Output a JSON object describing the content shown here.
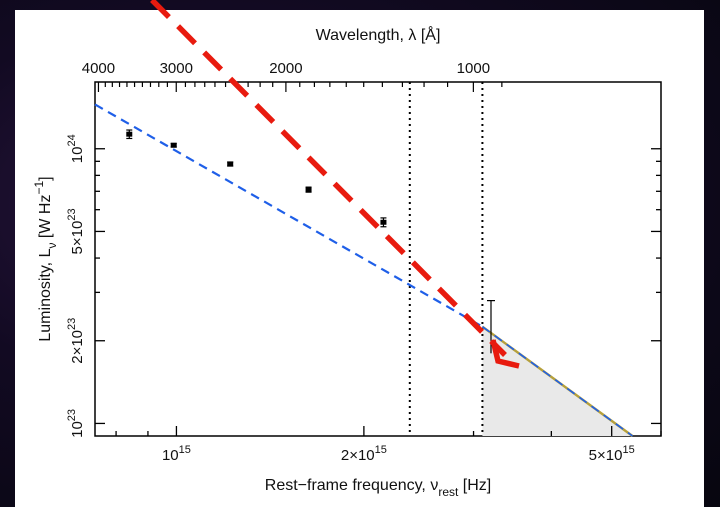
{
  "chart_data": {
    "type": "scatter",
    "title": "",
    "xlabel": {
      "text": "Rest−frame frequency, ν",
      "sub": "rest",
      "unit": " [Hz]"
    },
    "ylabel": {
      "text": "Luminosity, L",
      "sub": "ν",
      "unit": " [W Hz",
      "sup": "−1",
      "close": "]"
    },
    "top_xlabel": "Wavelength, λ [Å]",
    "x_scale": "log",
    "y_scale": "log",
    "xlim": [
      740000000000000.0,
      6000000000000000.0
    ],
    "ylim": [
      9e+22,
      1.75e+24
    ],
    "x_ticks": [
      {
        "value": 1000000000000000.0,
        "base": "10",
        "exp": "15"
      },
      {
        "value": 2000000000000000.0,
        "base": "2×10",
        "exp": "15"
      },
      {
        "value": 5000000000000000.0,
        "base": "5×10",
        "exp": "15"
      }
    ],
    "y_ticks": [
      {
        "value": 1e+23,
        "base": "10",
        "exp": "23"
      },
      {
        "value": 2e+23,
        "base": "2×10",
        "exp": "23"
      },
      {
        "value": 5e+23,
        "base": "5×10",
        "exp": "23"
      },
      {
        "value": 1e+24,
        "base": "10",
        "exp": "24"
      }
    ],
    "top_ticks": [
      {
        "value": 4000,
        "label": "4000"
      },
      {
        "value": 3000,
        "label": "3000"
      },
      {
        "value": 2000,
        "label": "2000"
      },
      {
        "value": 1000,
        "label": "1000"
      }
    ],
    "points": [
      {
        "x": 840000000000000.0,
        "y": 1.13e+24,
        "err": 4e+22
      },
      {
        "x": 990000000000000.0,
        "y": 1.03e+24,
        "err": 1.5e+22
      },
      {
        "x": 1220000000000000.0,
        "y": 8.8e+23,
        "err": 1.5e+22
      },
      {
        "x": 1630000000000000.0,
        "y": 7.1e+23,
        "err": 1.5e+22
      },
      {
        "x": 2150000000000000.0,
        "y": 5.4e+23,
        "err": 2e+22
      }
    ],
    "upper_point": {
      "x": 3200000000000000.0,
      "y": 2.3e+23,
      "err_low": 5e+22,
      "err_high": 5e+22
    },
    "fit_line": {
      "x": [
        740000000000000.0,
        3100000000000000.0
      ],
      "y": [
        1.45e+24,
        2.25e+23
      ],
      "color": "#1f5fe8"
    },
    "extrapolation": {
      "x": [
        3100000000000000.0,
        5400000000000000.0
      ],
      "y": [
        2.25e+23,
        9e+22
      ],
      "color": "#b5a03c"
    },
    "vlines": [
      2370000000000000.0,
      3100000000000000.0
    ],
    "shade": {
      "x_start": 3100000000000000.0,
      "color": "#e9e9e9"
    },
    "arrow": {
      "color": "#e81b0f"
    }
  }
}
